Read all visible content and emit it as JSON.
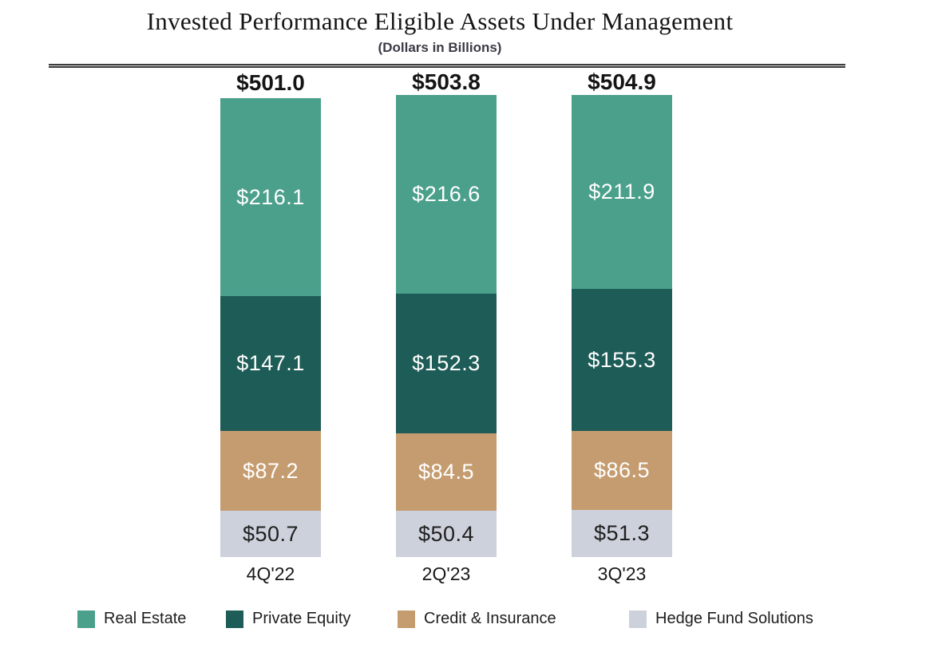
{
  "header": {
    "title": "Invested Performance Eligible Assets Under Management",
    "subtitle": "(Dollars in Billions)"
  },
  "chart_data": {
    "type": "bar",
    "variant": "stacked",
    "title": "Invested Performance Eligible Assets Under Management",
    "subtitle": "(Dollars in Billions)",
    "unit": "USD billions",
    "gridlines": false,
    "y_axis_visible": false,
    "legend_position": "bottom",
    "categories": [
      "4Q'22",
      "2Q'23",
      "3Q'23"
    ],
    "totals": [
      501.0,
      503.8,
      504.9
    ],
    "total_labels": [
      "$501.0",
      "$503.8",
      "$504.9"
    ],
    "series": [
      {
        "name": "Real Estate",
        "color": "#4ba08c",
        "text_color": "#ffffff",
        "values": [
          216.1,
          216.6,
          211.9
        ],
        "value_labels": [
          "$216.1",
          "$216.6",
          "$211.9"
        ]
      },
      {
        "name": "Private Equity",
        "color": "#1d5c57",
        "text_color": "#ffffff",
        "values": [
          147.1,
          152.3,
          155.3
        ],
        "value_labels": [
          "$147.1",
          "$152.3",
          "$155.3"
        ]
      },
      {
        "name": "Credit & Insurance",
        "color": "#c59c6f",
        "text_color": "#ffffff",
        "values": [
          87.2,
          84.5,
          86.5
        ],
        "value_labels": [
          "$87.2",
          "$84.5",
          "$86.5"
        ]
      },
      {
        "name": "Hedge Fund Solutions",
        "color": "#cdd1dc",
        "text_color": "#1f1f1f",
        "values": [
          50.7,
          50.4,
          51.3
        ],
        "value_labels": [
          "$50.7",
          "$50.4",
          "$51.3"
        ]
      }
    ]
  }
}
